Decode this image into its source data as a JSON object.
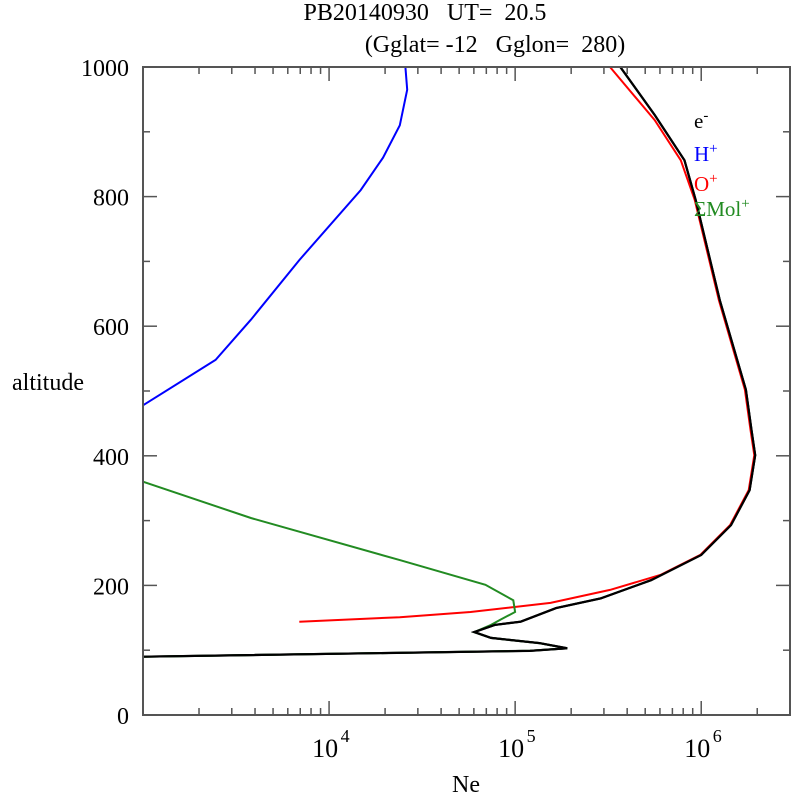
{
  "chart_data": {
    "type": "line",
    "title_line1": "PB20140930   UT=  20.5",
    "title_line2": "(Gglat= -12   Gglon=  280)",
    "xlabel": "Ne",
    "ylabel": "altitude",
    "xscale": "log",
    "xlim": [
      1000,
      3000000
    ],
    "ylim": [
      0,
      1000
    ],
    "yticks": [
      "0",
      "200",
      "400",
      "600",
      "800",
      "1000"
    ],
    "ytick_values": [
      0,
      200,
      400,
      600,
      800,
      1000
    ],
    "xticks": [
      {
        "base": "10",
        "exp": "4",
        "value": 10000
      },
      {
        "base": "10",
        "exp": "5",
        "value": 100000
      },
      {
        "base": "10",
        "exp": "6",
        "value": 1000000
      }
    ],
    "legend_position": "top-right",
    "series": [
      {
        "name": "e",
        "sup": "-",
        "color": "#000000",
        "log10_ne": [
          5.565,
          5.75,
          5.91,
          5.97,
          6.1,
          6.24,
          6.27,
          6.29,
          6.26,
          6.16,
          6.0,
          5.73,
          5.46,
          5.22,
          5.03,
          4.89,
          4.78,
          4.87,
          5.13,
          5.28,
          5.08,
          3.0
        ],
        "altitude": [
          1000,
          926,
          856,
          795,
          640,
          502,
          440,
          401,
          347,
          293,
          247,
          208,
          180,
          165,
          144,
          139,
          128,
          119,
          111,
          103,
          99,
          90
        ]
      },
      {
        "name": "H",
        "sup": "+",
        "color": "#0000ff",
        "log10_ne": [
          4.41,
          4.42,
          4.38,
          4.29,
          4.17,
          3.84,
          3.58,
          3.39,
          3.0
        ],
        "altitude": [
          1000,
          965,
          910,
          860,
          810,
          702,
          610,
          548,
          478
        ]
      },
      {
        "name": "O",
        "sup": "+",
        "color": "#ff0000",
        "log10_ne": [
          5.51,
          5.75,
          5.89,
          5.965,
          6.095,
          6.235,
          6.265,
          6.285,
          6.255,
          6.155,
          5.995,
          5.78,
          5.51,
          5.19,
          4.76,
          4.38,
          3.84
        ],
        "altitude": [
          1000,
          918,
          856,
          795,
          640,
          502,
          440,
          401,
          347,
          293,
          247,
          216,
          193,
          173,
          159,
          151,
          144
        ]
      },
      {
        "name": "ΣMol",
        "sup": "+",
        "color": "#228b22",
        "log10_ne": [
          3.0,
          3.58,
          4.38,
          4.84,
          4.99,
          5.0,
          4.92,
          4.87,
          4.78,
          4.87,
          5.13,
          5.28,
          5.08,
          3.0
        ],
        "altitude": [
          360,
          304,
          239,
          201,
          177,
          159,
          147,
          139,
          128,
          119,
          111,
          103,
          99,
          90
        ]
      }
    ]
  }
}
